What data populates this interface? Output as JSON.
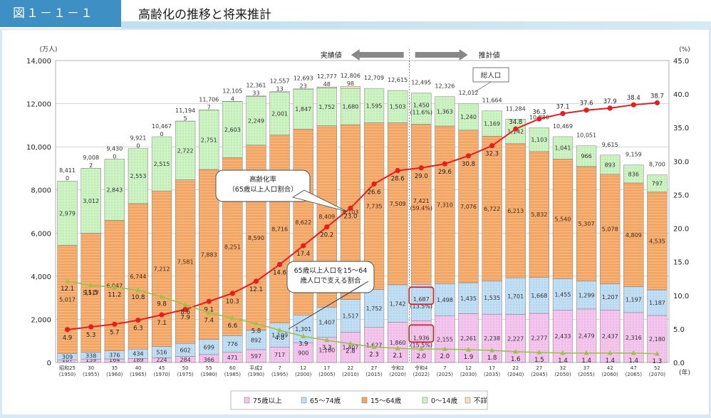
{
  "header": {
    "figure_no": "図１－１－１",
    "title": "高齢化の推移と将来推計"
  },
  "chart_data": {
    "type": "bar",
    "stacked": true,
    "left_axis": {
      "unit": "(万人)",
      "min": 0,
      "max": 14000,
      "ticks": [
        "0",
        "2,000",
        "4,000",
        "6,000",
        "8,000",
        "10,000",
        "12,000",
        "14,000"
      ]
    },
    "right_axis": {
      "unit": "(%)",
      "min": 0,
      "max": 45,
      "ticks": [
        "0.0",
        "5.0",
        "10.0",
        "15.0",
        "20.0",
        "25.0",
        "30.0",
        "35.0",
        "40.0",
        "45.0"
      ]
    },
    "x_unit": "(年)",
    "categories": [
      {
        "l1": "昭和25",
        "l2": "(1950)"
      },
      {
        "l1": "30",
        "l2": "(1955)"
      },
      {
        "l1": "35",
        "l2": "(1960)"
      },
      {
        "l1": "40",
        "l2": "(1965)"
      },
      {
        "l1": "45",
        "l2": "(1970)"
      },
      {
        "l1": "50",
        "l2": "(1975)"
      },
      {
        "l1": "55",
        "l2": "(1980)"
      },
      {
        "l1": "60",
        "l2": "(1985)"
      },
      {
        "l1": "平成2",
        "l2": "(1990)"
      },
      {
        "l1": "7",
        "l2": "(1995)"
      },
      {
        "l1": "12",
        "l2": "(2000)"
      },
      {
        "l1": "17",
        "l2": "(2005)"
      },
      {
        "l1": "22",
        "l2": "(2010)"
      },
      {
        "l1": "27",
        "l2": "(2015)"
      },
      {
        "l1": "令和2",
        "l2": "(2020)"
      },
      {
        "l1": "令和4",
        "l2": "(2022)"
      },
      {
        "l1": "7",
        "l2": "(2025)"
      },
      {
        "l1": "12",
        "l2": "(2030)"
      },
      {
        "l1": "17",
        "l2": "(2035)"
      },
      {
        "l1": "22",
        "l2": "(2040)"
      },
      {
        "l1": "27",
        "l2": "(2045)"
      },
      {
        "l1": "32",
        "l2": "(2050)"
      },
      {
        "l1": "37",
        "l2": "(2055)"
      },
      {
        "l1": "42",
        "l2": "(2060)"
      },
      {
        "l1": "47",
        "l2": "(2065)"
      },
      {
        "l1": "52",
        "l2": "(2070)"
      }
    ],
    "series": [
      {
        "name": "75歳以上",
        "color": "#f4c6ee",
        "values": [
          107,
          139,
          164,
          189,
          224,
          284,
          366,
          471,
          597,
          717,
          900,
          1160,
          1407,
          1627,
          1860,
          1936,
          2155,
          2261,
          2238,
          2227,
          2277,
          2433,
          2479,
          2437,
          2316,
          2180
        ],
        "labels": [
          "107",
          "139",
          "164",
          "189",
          "224",
          "284",
          "366",
          "471",
          "597",
          "717",
          "900",
          "1,160",
          "1,407",
          "1,627",
          "1,860",
          "1,936\n(15.5%)",
          "2,155",
          "2,261",
          "2,238",
          "2,227",
          "2,277",
          "2,433",
          "2,479",
          "2,437",
          "2,316",
          "2,180"
        ]
      },
      {
        "name": "65～74歳",
        "color": "#c2def3",
        "values": [
          309,
          338,
          376,
          434,
          516,
          602,
          699,
          776,
          892,
          1109,
          1301,
          1407,
          1517,
          1752,
          1742,
          1687,
          1498,
          1435,
          1535,
          1701,
          1668,
          1455,
          1299,
          1207,
          1197,
          1187
        ],
        "labels": [
          "309",
          "338",
          "376",
          "434",
          "516",
          "602",
          "699",
          "776",
          "892",
          "1,109",
          "1,301",
          "1,407",
          "1,517",
          "1,752",
          "1,742",
          "1,687\n(13.5%)",
          "1,498",
          "1,435",
          "1,535",
          "1,701",
          "1,668",
          "1,455",
          "1,299",
          "1,207",
          "1,197",
          "1,187"
        ]
      },
      {
        "name": "15～64歳",
        "color": "#f3a564",
        "values": [
          5017,
          5517,
          6047,
          6744,
          7212,
          7581,
          7883,
          8251,
          8590,
          8716,
          8622,
          8409,
          8103,
          7735,
          7509,
          7421,
          7310,
          7076,
          6722,
          6213,
          5832,
          5540,
          5307,
          5078,
          4809,
          4535
        ],
        "labels": [
          "5,017",
          "5,517",
          "6,047",
          "6,744",
          "7,212",
          "7,581",
          "7,883",
          "8,251",
          "8,590",
          "8,716",
          "8,622",
          "8,409",
          "8,103",
          "7,735",
          "7,509",
          "7,421\n(59.4%)",
          "7,310",
          "7,076",
          "6,722",
          "6,213",
          "5,832",
          "5,540",
          "5,307",
          "5,078",
          "4,809",
          "4,535"
        ]
      },
      {
        "name": "0～14歳",
        "color": "#cdf2c4",
        "values": [
          2979,
          3012,
          2843,
          2553,
          2515,
          2722,
          2751,
          2603,
          2249,
          2001,
          1847,
          1752,
          1680,
          1595,
          1503,
          1450,
          1363,
          1240,
          1169,
          1142,
          1103,
          1041,
          966,
          893,
          836,
          797
        ],
        "labels": [
          "2,979",
          "3,012",
          "2,843",
          "2,553",
          "2,515",
          "2,722",
          "2,751",
          "2,603",
          "2,249",
          "2,001",
          "1,847",
          "1,752",
          "1,680",
          "1,595",
          "1,503",
          "1,450\n(11.6%)",
          "1,363",
          "1,240",
          "1,169",
          "1,142",
          "1,103",
          "1,041",
          "966",
          "893",
          "836",
          "797"
        ]
      },
      {
        "name": "不詳",
        "color": "#f8ddc0",
        "values": [
          0,
          2,
          0,
          0,
          0,
          5,
          7,
          4,
          33,
          13,
          23,
          48,
          98,
          0,
          0,
          0,
          0,
          0,
          0,
          0,
          0,
          0,
          0,
          0,
          0,
          0
        ],
        "labels": [
          "0",
          "2",
          "0",
          "0",
          "0",
          "5",
          "7",
          "4",
          "33",
          "13",
          "23",
          "48",
          "98",
          "",
          "",
          "",
          "",
          "",
          "",
          "",
          "",
          "",
          "",
          "",
          "",
          ""
        ]
      }
    ],
    "totals": [
      "8,411",
      "9,008",
      "9,430",
      "9,921",
      "10,467",
      "11,194",
      "11,706",
      "12,105",
      "12,361",
      "12,557",
      "12,693",
      "12,777",
      "12,806",
      "12,709",
      "12,615",
      "12,495",
      "12,326",
      "12,012",
      "11,664",
      "11,284",
      "10,880",
      "10,469",
      "10,051",
      "9,615",
      "9,159",
      "8,700"
    ],
    "lines": [
      {
        "name": "高齢化率(65歳以上人口割合)",
        "color": "#e31f1f",
        "values": [
          4.9,
          5.3,
          5.7,
          6.3,
          7.1,
          7.9,
          9.1,
          10.3,
          12.1,
          14.6,
          17.4,
          20.2,
          23.0,
          26.6,
          28.6,
          29.0,
          29.6,
          30.8,
          32.3,
          34.8,
          36.3,
          37.1,
          37.6,
          37.9,
          38.4,
          38.7
        ],
        "labels": [
          "4.9",
          "5.3",
          "5.7",
          "6.3",
          "7.1",
          "7.9",
          "9.1",
          "10.3",
          "12.1",
          "14.6",
          "17.4",
          "20.2",
          "23.0",
          "26.6",
          "28.6",
          "29.0",
          "29.6",
          "30.8",
          "32.3",
          "34.8",
          "36.3",
          "37.1",
          "37.6",
          "37.9",
          "38.4",
          "38.7"
        ]
      },
      {
        "name": "65歳以上人口を15～64歳人口で支える割合",
        "color": "#9cc04a",
        "values": [
          12.1,
          11.5,
          11.2,
          10.8,
          9.8,
          8.6,
          7.4,
          6.6,
          5.8,
          4.8,
          3.9,
          3.3,
          2.8,
          2.3,
          2.1,
          2.0,
          2.0,
          1.9,
          1.8,
          1.6,
          1.5,
          1.4,
          1.4,
          1.4,
          1.4,
          1.3
        ],
        "labels": [
          "12.1",
          "11.5",
          "11.2",
          "10.8",
          "9.8",
          "8.6",
          "7.4",
          "6.6",
          "5.8",
          "4.8",
          "3.9",
          "3.3",
          "2.8",
          "2.3",
          "2.1",
          "2.0",
          "2.0",
          "1.9",
          "1.8",
          "1.6",
          "1.5",
          "1.4",
          "1.4",
          "1.4",
          "1.4",
          "1.3"
        ]
      }
    ],
    "annotations": {
      "actual": "実績値",
      "projection": "推計値",
      "total_pop": "総人口",
      "aging_rate_1": "高齢化率",
      "aging_rate_2": "（65歳以上人口割合）",
      "support_1": "65歳以上人口を15～64",
      "support_2": "歳人口で支える割合"
    },
    "legend": [
      {
        "label": "75歳以上",
        "color": "#f4c6ee"
      },
      {
        "label": "65～74歳",
        "color": "#c2def3"
      },
      {
        "label": "15～64歳",
        "color": "#f3a564"
      },
      {
        "label": "0～14歳",
        "color": "#cdf2c4"
      },
      {
        "label": "不詳",
        "color": "#f8ddc0"
      }
    ],
    "grid": true,
    "legend_position": "bottom"
  }
}
